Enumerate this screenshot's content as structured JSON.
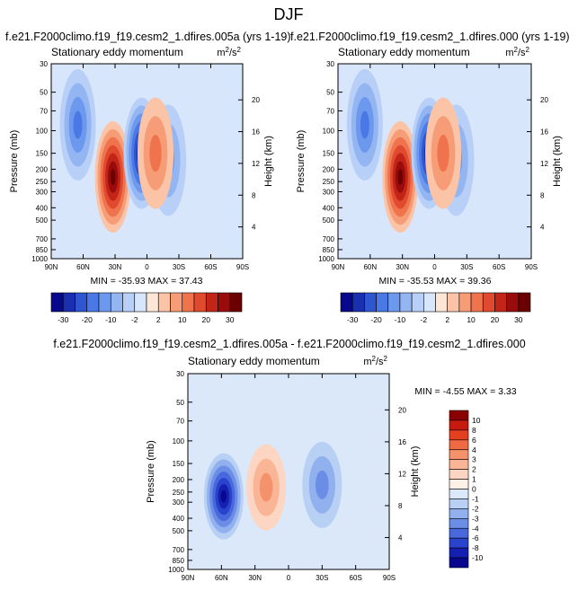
{
  "page_title": "DJF",
  "chart_data": [
    {
      "type": "heatmap",
      "title": "f.e21.F2000climo.f19_f19.cesm2_1.dfires.005a (yrs 1-19)",
      "subtitle": "Stationary eddy momentum",
      "units": "m2/s2",
      "ylabel": "Pressure (mb)",
      "ylabel_right": "Height (km)",
      "x_ticks": [
        "90N",
        "60N",
        "30N",
        "0",
        "30S",
        "60S",
        "90S"
      ],
      "y_ticks": [
        "30",
        "50",
        "70",
        "100",
        "150",
        "200",
        "250",
        "300",
        "400",
        "500",
        "700",
        "850",
        "1000"
      ],
      "height_ticks": [
        "20",
        "16",
        "12",
        "8",
        "4"
      ],
      "min_max": "MIN = -35.93   MAX = 37.43",
      "colorbar_labels": [
        "-30",
        "-20",
        "-10",
        "-2",
        "2",
        "10",
        "20",
        "30"
      ],
      "features": [
        {
          "lat": 32,
          "p": 230,
          "value": 37.43
        },
        {
          "lat": 5,
          "p": 150,
          "value": -35.93
        },
        {
          "lat": 65,
          "p": 90,
          "value": -20
        },
        {
          "lat": -20,
          "p": 170,
          "value": -15
        },
        {
          "lat": -8,
          "p": 150,
          "value": 8
        }
      ]
    },
    {
      "type": "heatmap",
      "title": "f.e21.F2000climo.f19_f19.cesm2_1.dfires.000 (yrs 1-19)",
      "subtitle": "Stationary eddy momentum",
      "units": "m2/s2",
      "ylabel": "Pressure (mb)",
      "ylabel_right": "Height (km)",
      "x_ticks": [
        "90N",
        "60N",
        "30N",
        "0",
        "30S",
        "60S",
        "90S"
      ],
      "y_ticks": [
        "30",
        "50",
        "70",
        "100",
        "150",
        "200",
        "250",
        "300",
        "400",
        "500",
        "700",
        "850",
        "1000"
      ],
      "height_ticks": [
        "20",
        "16",
        "12",
        "8",
        "4"
      ],
      "min_max": "MIN = -35.53   MAX = 39.36",
      "colorbar_labels": [
        "-30",
        "-20",
        "-10",
        "-2",
        "2",
        "10",
        "20",
        "30"
      ],
      "features": [
        {
          "lat": 32,
          "p": 230,
          "value": 39.36
        },
        {
          "lat": 5,
          "p": 150,
          "value": -35.53
        },
        {
          "lat": 65,
          "p": 90,
          "value": -20
        },
        {
          "lat": -20,
          "p": 170,
          "value": -15
        },
        {
          "lat": -8,
          "p": 150,
          "value": 8
        }
      ]
    },
    {
      "type": "heatmap",
      "title": "f.e21.F2000climo.f19_f19.cesm2_1.dfires.005a - f.e21.F2000climo.f19_f19.cesm2_1.dfires.000",
      "subtitle": "Stationary eddy momentum",
      "units": "m2/s2",
      "ylabel": "Pressure (mb)",
      "ylabel_right": "Height (km)",
      "x_ticks": [
        "90N",
        "60N",
        "30N",
        "0",
        "30S",
        "60S",
        "90S"
      ],
      "y_ticks": [
        "30",
        "50",
        "70",
        "100",
        "150",
        "200",
        "250",
        "300",
        "400",
        "500",
        "700",
        "850",
        "1000"
      ],
      "height_ticks": [
        "20",
        "16",
        "12",
        "8",
        "4"
      ],
      "min_max": "MIN = -4.55   MAX =  3.33",
      "colorbar_labels": [
        "10",
        "8",
        "6",
        "4",
        "3",
        "2",
        "1",
        "0",
        "-1",
        "-2",
        "-3",
        "-4",
        "-6",
        "-8",
        "-10"
      ],
      "features": [
        {
          "lat": 58,
          "p": 270,
          "value": -4.55
        },
        {
          "lat": -30,
          "p": 220,
          "value": -2
        },
        {
          "lat": 20,
          "p": 230,
          "value": 1.5
        }
      ]
    }
  ],
  "colors": {
    "main_scale": [
      "#08088c",
      "#1a2fb0",
      "#2f55d0",
      "#4a79e6",
      "#6c98ee",
      "#93b6f3",
      "#b8cff7",
      "#d8e6fb",
      "#fde6d6",
      "#fbc4a6",
      "#f69c77",
      "#ef744e",
      "#e04b2f",
      "#c32418",
      "#9a0c0c",
      "#6b0000"
    ],
    "diff_scale": [
      "#8b0000",
      "#c61a0e",
      "#e2401f",
      "#ef6a43",
      "#f5926b",
      "#f9b596",
      "#fcd6c2",
      "#fdf0e6",
      "#dbe8fa",
      "#b9d0f5",
      "#90b0ee",
      "#6b8de6",
      "#4868dc",
      "#2a43cc",
      "#151fb0",
      "#070790"
    ]
  }
}
